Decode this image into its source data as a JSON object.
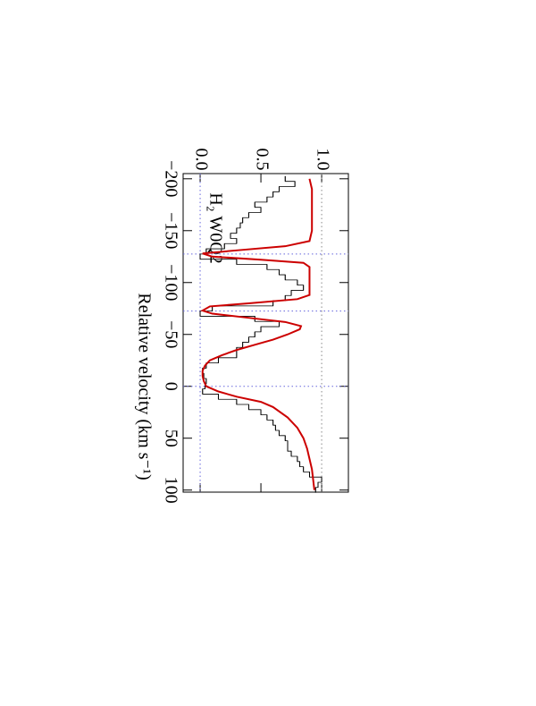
{
  "chart_data": {
    "type": "line",
    "annotation": "H₂ W0Q2",
    "xlabel": "Relative velocity (km s⁻¹)",
    "xlim": [
      -205,
      102
    ],
    "ylim": [
      -0.14,
      1.22
    ],
    "xticks": [
      {
        "value": -200,
        "label": "−200"
      },
      {
        "value": -150,
        "label": "−150"
      },
      {
        "value": -100,
        "label": "−100"
      },
      {
        "value": -50,
        "label": "−50"
      },
      0,
      50,
      100
    ],
    "yticks": [
      {
        "value": 0,
        "label": "0.0"
      },
      0.5,
      {
        "value": 1,
        "label": "1.0"
      }
    ],
    "reference_y": [
      {
        "value": 0,
        "color": "#6666dd"
      },
      {
        "value": 1,
        "color": "#888888"
      }
    ],
    "reference_x": [
      -127.5,
      -72.5,
      0
    ],
    "reference_x_color": "#6666dd",
    "series": [
      {
        "step": true,
        "color": "#000000",
        "x": [
          -200,
          -195,
          -190,
          -185,
          -180,
          -175,
          -170,
          -165,
          -160,
          -155,
          -150,
          -145,
          -140,
          -135,
          -130,
          -125,
          -120,
          -115,
          -110,
          -105,
          -100,
          -95,
          -90,
          -85,
          -80,
          -75,
          -70,
          -65,
          -60,
          -55,
          -50,
          -45,
          -40,
          -35,
          -30,
          -25,
          -20,
          -15,
          -10,
          -5,
          0,
          5,
          10,
          15,
          20,
          25,
          30,
          35,
          40,
          45,
          50,
          55,
          60,
          65,
          70,
          75,
          80,
          85,
          90,
          95,
          100
        ],
        "values": [
          0.7,
          0.78,
          0.65,
          0.6,
          0.55,
          0.45,
          0.5,
          0.4,
          0.35,
          0.33,
          0.3,
          0.25,
          0.3,
          0.2,
          0.05,
          0.0,
          0.3,
          0.55,
          0.65,
          0.7,
          0.8,
          0.85,
          0.75,
          0.7,
          0.6,
          0.1,
          0.0,
          0.45,
          0.65,
          0.5,
          0.45,
          0.4,
          0.35,
          0.3,
          0.3,
          0.15,
          0.05,
          0.02,
          0.03,
          0.05,
          0.04,
          0.02,
          0.15,
          0.3,
          0.4,
          0.5,
          0.55,
          0.6,
          0.62,
          0.65,
          0.7,
          0.72,
          0.72,
          0.75,
          0.8,
          0.82,
          0.85,
          0.9,
          1.0,
          0.97,
          0.95
        ]
      },
      {
        "step": false,
        "color": "#cc0000",
        "x": [
          -200,
          -190,
          -170,
          -150,
          -140,
          -135,
          -131,
          -128,
          -125,
          -122,
          -119,
          -115,
          -100,
          -88,
          -84,
          -80,
          -77,
          -73,
          -70,
          -66,
          -62,
          -58,
          -55,
          -50,
          -45,
          -40,
          -35,
          -30,
          -25,
          -20,
          -15,
          -10,
          -5,
          0,
          5,
          10,
          15,
          20,
          30,
          40,
          50,
          60,
          70,
          80,
          90,
          100
        ],
        "values": [
          0.9,
          0.92,
          0.92,
          0.92,
          0.9,
          0.7,
          0.3,
          0.02,
          0.1,
          0.5,
          0.85,
          0.9,
          0.9,
          0.9,
          0.8,
          0.4,
          0.08,
          0.02,
          0.1,
          0.4,
          0.7,
          0.83,
          0.82,
          0.72,
          0.6,
          0.45,
          0.3,
          0.18,
          0.08,
          0.04,
          0.02,
          0.02,
          0.03,
          0.05,
          0.15,
          0.3,
          0.5,
          0.6,
          0.72,
          0.8,
          0.85,
          0.88,
          0.9,
          0.92,
          0.93,
          0.94
        ]
      }
    ]
  }
}
